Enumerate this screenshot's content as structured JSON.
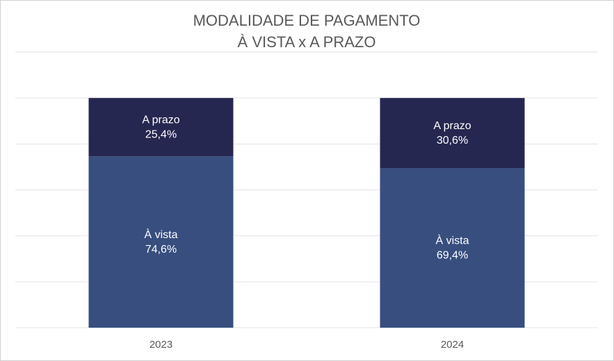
{
  "chart_data": {
    "type": "stacked_bar",
    "title": "MODALIDADE DE PAGAMENTO",
    "subtitle": "À VISTA x A PRAZO",
    "categories": [
      "2023",
      "2024"
    ],
    "series": [
      {
        "name": "À vista",
        "color": "#374e7f",
        "values": [
          74.6,
          69.4
        ],
        "value_labels": [
          "74,6%",
          "69,4%"
        ]
      },
      {
        "name": "A prazo",
        "color": "#262750",
        "values": [
          25.4,
          30.6
        ],
        "value_labels": [
          "25,4%",
          "30,6%"
        ]
      }
    ],
    "ylim": [
      0,
      120
    ],
    "yticks": [
      0,
      20,
      40,
      60,
      80,
      100,
      120
    ],
    "grid": true
  }
}
